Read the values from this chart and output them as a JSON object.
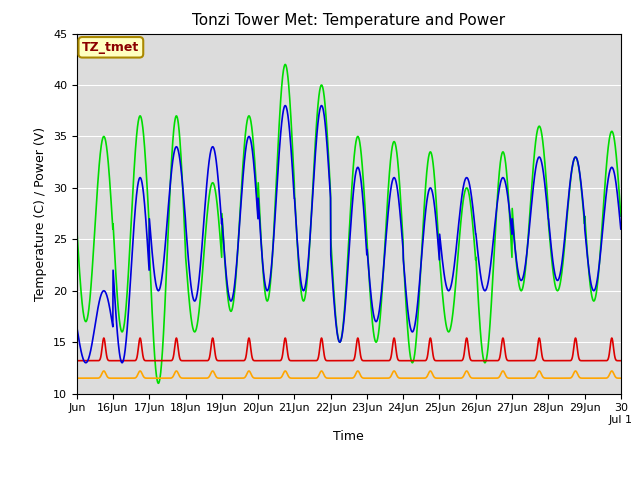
{
  "title": "Tonzi Tower Met: Temperature and Power",
  "xlabel": "Time",
  "ylabel": "Temperature (C) / Power (V)",
  "ylim": [
    10,
    45
  ],
  "annotation_text": "TZ_tmet",
  "annotation_color": "#8B0000",
  "annotation_bg": "#FFFFC0",
  "plot_bg": "#DCDCDC",
  "line_colors": {
    "panel_t": "#00DD00",
    "battery_v": "#DD0000",
    "air_t": "#0000DD",
    "solar_v": "#FFA500"
  },
  "line_widths": {
    "panel_t": 1.2,
    "battery_v": 1.2,
    "air_t": 1.2,
    "solar_v": 1.2
  },
  "grid_color": "#FFFFFF",
  "title_fontsize": 11,
  "axis_fontsize": 8,
  "tick_labels": [
    "Jun",
    "16Jun",
    "17Jun",
    "18Jun",
    "19Jun",
    "20Jun",
    "21Jun",
    "22Jun",
    "23Jun",
    "24Jun",
    "25Jun",
    "26Jun",
    "27Jun",
    "28Jun",
    "29Jun",
    "30\nJul 1"
  ],
  "panel_t_peaks": [
    35,
    37,
    37,
    30.5,
    37,
    42,
    40,
    35,
    34.5,
    33.5,
    30,
    33.5,
    36,
    33,
    35.5
  ],
  "panel_t_mins": [
    17,
    16,
    11,
    16,
    18,
    19,
    19,
    15,
    15,
    13,
    16,
    13,
    20,
    20,
    19
  ],
  "air_t_peaks": [
    20,
    31,
    34,
    34,
    35,
    38,
    38,
    32,
    31,
    30,
    31,
    31,
    33,
    33,
    32
  ],
  "air_t_mins": [
    13,
    13,
    20,
    19,
    19,
    20,
    20,
    15,
    17,
    16,
    20,
    20,
    21,
    21,
    20
  ],
  "battery_base": 13.2,
  "battery_peak_add": 2.2,
  "solar_base": 11.5,
  "solar_peak_add": 0.7
}
